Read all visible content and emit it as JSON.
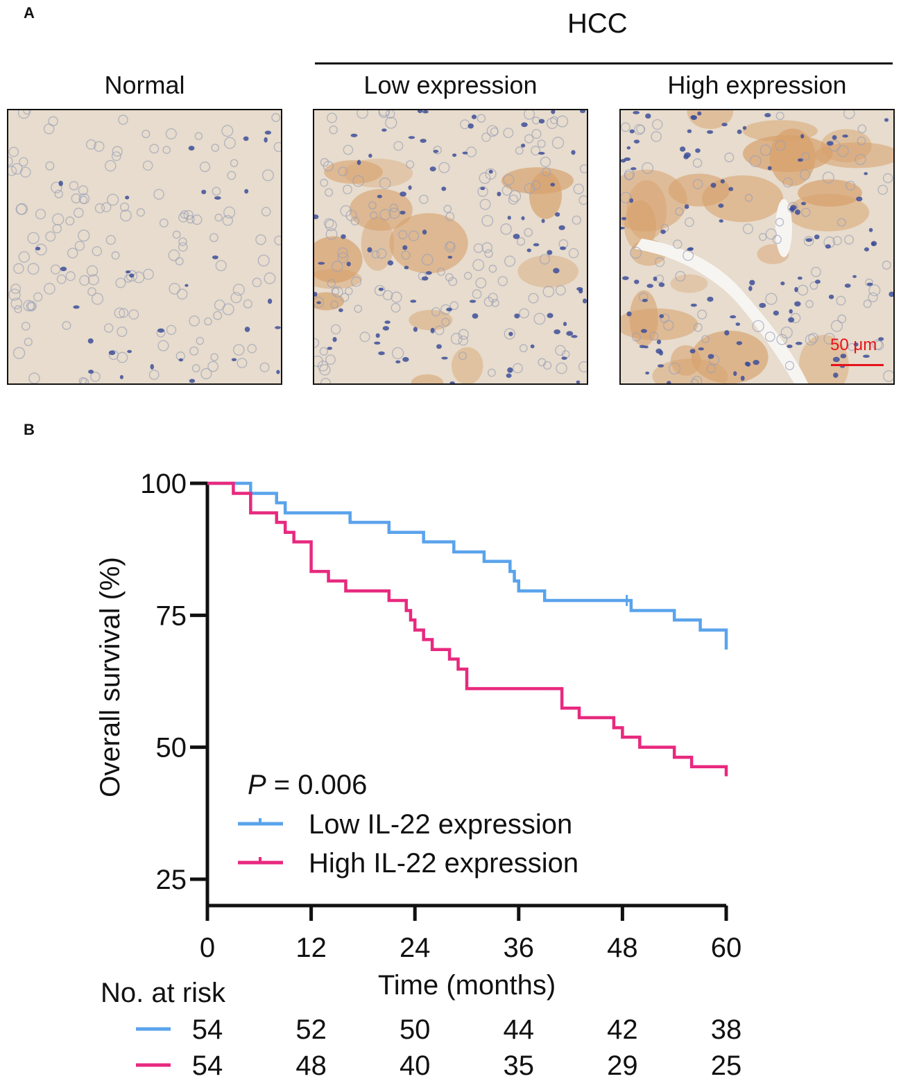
{
  "panel_a": {
    "letter": "A",
    "group_title": "HCC",
    "tiles": [
      {
        "label": "Normal",
        "stain": "low-diffuse"
      },
      {
        "label": "Low expression",
        "stain": "moderate-patchy"
      },
      {
        "label": "High expression",
        "stain": "high-diffuse"
      }
    ],
    "scale_bar": {
      "label": "50 μm",
      "color": "#e8121b"
    },
    "colors": {
      "nuclei": "#3d4f9a",
      "background": "#e7dccd",
      "stain": "#d7a06a"
    }
  },
  "panel_b": {
    "letter": "B",
    "p_value": {
      "symbol": "P",
      "text": "= 0.006"
    },
    "risk_table": {
      "title": "No. at risk",
      "rows": [
        {
          "series": "Low IL-22 expression",
          "color": "#5aa3ec",
          "counts": [
            54,
            52,
            50,
            44,
            42,
            38
          ]
        },
        {
          "series": "High IL-22 expression",
          "color": "#e8297f",
          "counts": [
            54,
            48,
            40,
            35,
            29,
            25
          ]
        }
      ]
    }
  },
  "chart_data": {
    "type": "line",
    "subtype": "kaplan-meier step",
    "title": "",
    "xlabel": "Time (months)",
    "ylabel": "Overall survival (%)",
    "xlim": [
      0,
      60
    ],
    "ylim": [
      20,
      100
    ],
    "xticks": [
      0,
      12,
      24,
      36,
      48,
      60
    ],
    "yticks": [
      25,
      50,
      75,
      100
    ],
    "grid": false,
    "legend_position": "lower-left",
    "series": [
      {
        "name": "Low IL-22 expression",
        "color": "#5aa3ec",
        "steps": [
          [
            0,
            100
          ],
          [
            5,
            98.1
          ],
          [
            8,
            96.3
          ],
          [
            9,
            94.4
          ],
          [
            16.5,
            92.6
          ],
          [
            21,
            90.7
          ],
          [
            25,
            88.9
          ],
          [
            28.5,
            87.0
          ],
          [
            32,
            85.2
          ],
          [
            35,
            83.3
          ],
          [
            35.5,
            81.5
          ],
          [
            36,
            79.6
          ],
          [
            39,
            77.8
          ],
          [
            49,
            75.9
          ],
          [
            54,
            74.1
          ],
          [
            57,
            72.2
          ],
          [
            60,
            68.5
          ]
        ],
        "censor": [
          [
            48.5,
            77.8
          ]
        ]
      },
      {
        "name": "High IL-22 expression",
        "color": "#e8297f",
        "steps": [
          [
            0,
            100
          ],
          [
            3,
            98.1
          ],
          [
            5,
            94.4
          ],
          [
            8,
            92.6
          ],
          [
            9,
            90.7
          ],
          [
            10,
            88.9
          ],
          [
            12,
            83.3
          ],
          [
            14,
            81.5
          ],
          [
            16,
            79.6
          ],
          [
            21,
            77.8
          ],
          [
            23,
            75.9
          ],
          [
            23.5,
            74.1
          ],
          [
            24,
            72.2
          ],
          [
            25,
            70.4
          ],
          [
            26,
            68.5
          ],
          [
            28,
            66.7
          ],
          [
            29,
            64.8
          ],
          [
            30,
            61.1
          ],
          [
            41,
            57.4
          ],
          [
            43,
            55.6
          ],
          [
            47,
            53.7
          ],
          [
            48,
            51.9
          ],
          [
            50,
            50.0
          ],
          [
            54,
            48.1
          ],
          [
            56,
            46.3
          ],
          [
            60,
            44.5
          ]
        ],
        "censor": []
      }
    ]
  }
}
